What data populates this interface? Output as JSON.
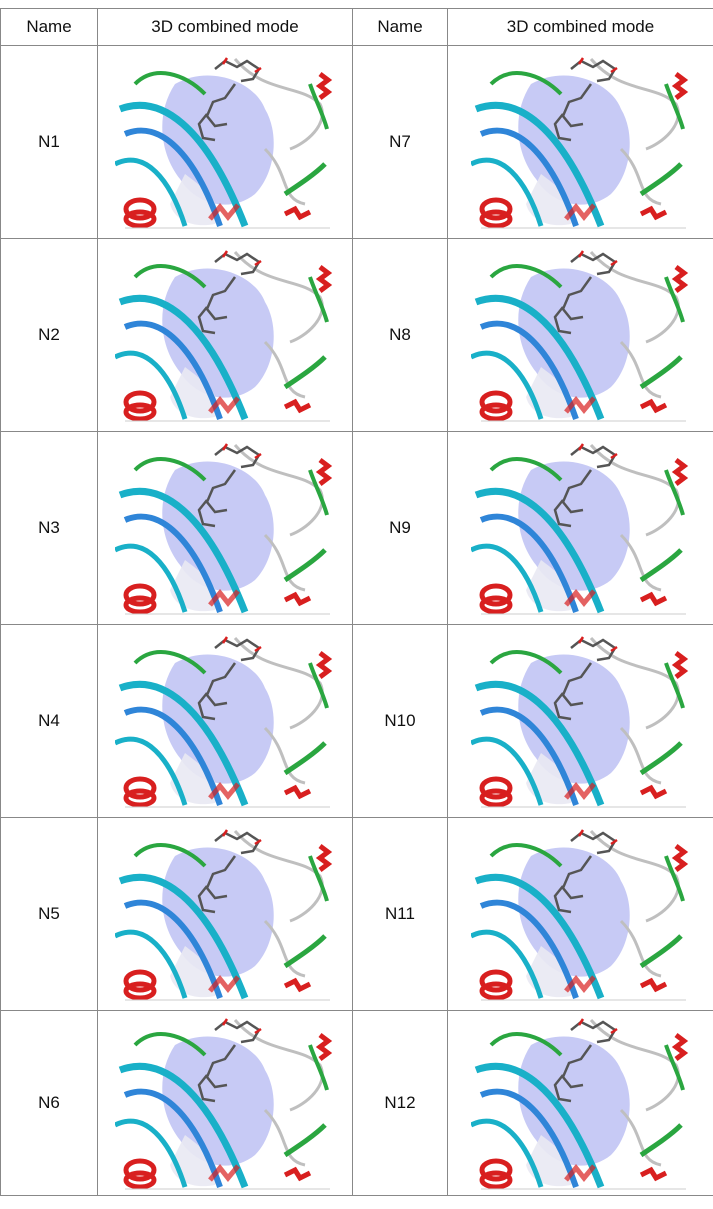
{
  "header": {
    "col1": "Name",
    "col2": "3D combined mode",
    "col3": "Name",
    "col4": "3D combined mode"
  },
  "rows": [
    {
      "left": "N1",
      "right": "N7"
    },
    {
      "left": "N2",
      "right": "N8"
    },
    {
      "left": "N3",
      "right": "N9"
    },
    {
      "left": "N4",
      "right": "N10"
    },
    {
      "left": "N5",
      "right": "N11"
    },
    {
      "left": "N6",
      "right": "N12"
    }
  ],
  "colors": {
    "helix": "#d81f1f",
    "sheet": "#19b0c8",
    "loop_green": "#2aa640",
    "coil": "#bfbfbf",
    "surface": "#a9aef0",
    "ligand": "#555555"
  },
  "icons": {
    "structure_image": "protein-ligand-docking-render"
  }
}
